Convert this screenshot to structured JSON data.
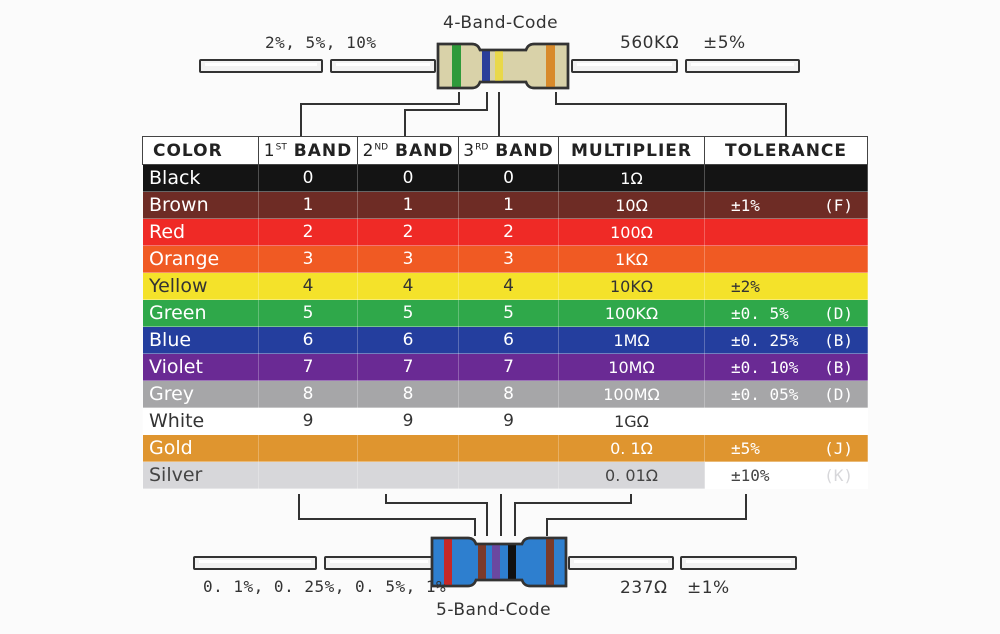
{
  "four_band": {
    "title": "4-Band-Code",
    "tolerance_range": "2%, 5%, 10%",
    "example_value": "560KΩ",
    "example_tolerance": "±5%",
    "bands": [
      "#2f9a3a",
      "#2b3f9a",
      "#e9d84a",
      "#d88a2b"
    ],
    "body_color": "#d9d2a9"
  },
  "five_band": {
    "title": "5-Band-Code",
    "tolerance_range": "0. 1%, 0. 25%, 0. 5%, 1%",
    "example_value": "237Ω",
    "example_tolerance": "±1%",
    "bands": [
      "#c62828",
      "#7b3a2a",
      "#6b48a0",
      "#111111",
      "#7b3a2a"
    ],
    "body_color": "#2e7fcf"
  },
  "table": {
    "headers": {
      "color": "COLOR",
      "band1_num": "1",
      "band1_sup": "ST",
      "band1_word": "BAND",
      "band2_num": "2",
      "band2_sup": "ND",
      "band2_word": "BAND",
      "band3_num": "3",
      "band3_sup": "RD",
      "band3_word": "BAND",
      "multiplier": "MULTIPLIER",
      "tolerance": "TOLERANCE"
    },
    "rows": [
      {
        "name": "Black",
        "b1": "0",
        "b2": "0",
        "b3": "0",
        "mult": "1Ω",
        "tol": "",
        "code": "",
        "bg": "#141414",
        "fg": "#ffffff",
        "tol_bg": "#141414"
      },
      {
        "name": "Brown",
        "b1": "1",
        "b2": "1",
        "b3": "1",
        "mult": "10Ω",
        "tol": "±1%",
        "code": "(F)",
        "bg": "#6e2c25",
        "fg": "#ffffff",
        "tol_bg": "#6e2c25"
      },
      {
        "name": "Red",
        "b1": "2",
        "b2": "2",
        "b3": "2",
        "mult": "100Ω",
        "tol": "",
        "code": "",
        "bg": "#ef2a26",
        "fg": "#ffffff",
        "tol_bg": "#ef2a26"
      },
      {
        "name": "Orange",
        "b1": "3",
        "b2": "3",
        "b3": "3",
        "mult": "1KΩ",
        "tol": "",
        "code": "",
        "bg": "#f05a23",
        "fg": "#ffffff",
        "tol_bg": "#f05a23"
      },
      {
        "name": "Yellow",
        "b1": "4",
        "b2": "4",
        "b3": "4",
        "mult": "10KΩ",
        "tol": "±2%",
        "code": "",
        "bg": "#f4e22a",
        "fg": "#333333",
        "tol_bg": "#f4e22a"
      },
      {
        "name": "Green",
        "b1": "5",
        "b2": "5",
        "b3": "5",
        "mult": "100KΩ",
        "tol": "±0. 5%",
        "code": "(D)",
        "bg": "#2fa84a",
        "fg": "#ffffff",
        "tol_bg": "#2fa84a"
      },
      {
        "name": "Blue",
        "b1": "6",
        "b2": "6",
        "b3": "6",
        "mult": "1MΩ",
        "tol": "±0. 25%",
        "code": "(B)",
        "bg": "#243e9e",
        "fg": "#ffffff",
        "tol_bg": "#243e9e"
      },
      {
        "name": "Violet",
        "b1": "7",
        "b2": "7",
        "b3": "7",
        "mult": "10MΩ",
        "tol": "±0. 10%",
        "code": "(B)",
        "bg": "#6a2a94",
        "fg": "#ffffff",
        "tol_bg": "#6a2a94"
      },
      {
        "name": "Grey",
        "b1": "8",
        "b2": "8",
        "b3": "8",
        "mult": "100MΩ",
        "tol": "±0. 05%",
        "code": "(D)",
        "bg": "#a6a6a8",
        "fg": "#ffffff",
        "tol_bg": "#a6a6a8"
      },
      {
        "name": "White",
        "b1": "9",
        "b2": "9",
        "b3": "9",
        "mult": "1GΩ",
        "tol": "",
        "code": "",
        "bg": "#ffffff",
        "fg": "#333333",
        "tol_bg": "#ffffff"
      },
      {
        "name": "Gold",
        "b1": "",
        "b2": "",
        "b3": "",
        "mult": "0. 1Ω",
        "tol": "±5%",
        "code": "(J)",
        "bg": "#df952f",
        "fg": "#ffffff",
        "tol_bg": "#df952f"
      },
      {
        "name": "Silver",
        "b1": "",
        "b2": "",
        "b3": "",
        "mult": "0. 01Ω",
        "tol": "±10%",
        "code": "(K)",
        "bg": "#d7d7da",
        "fg": "#444444",
        "tol_bg": "#ffffff",
        "code_fg": "#d7d7da"
      }
    ]
  }
}
